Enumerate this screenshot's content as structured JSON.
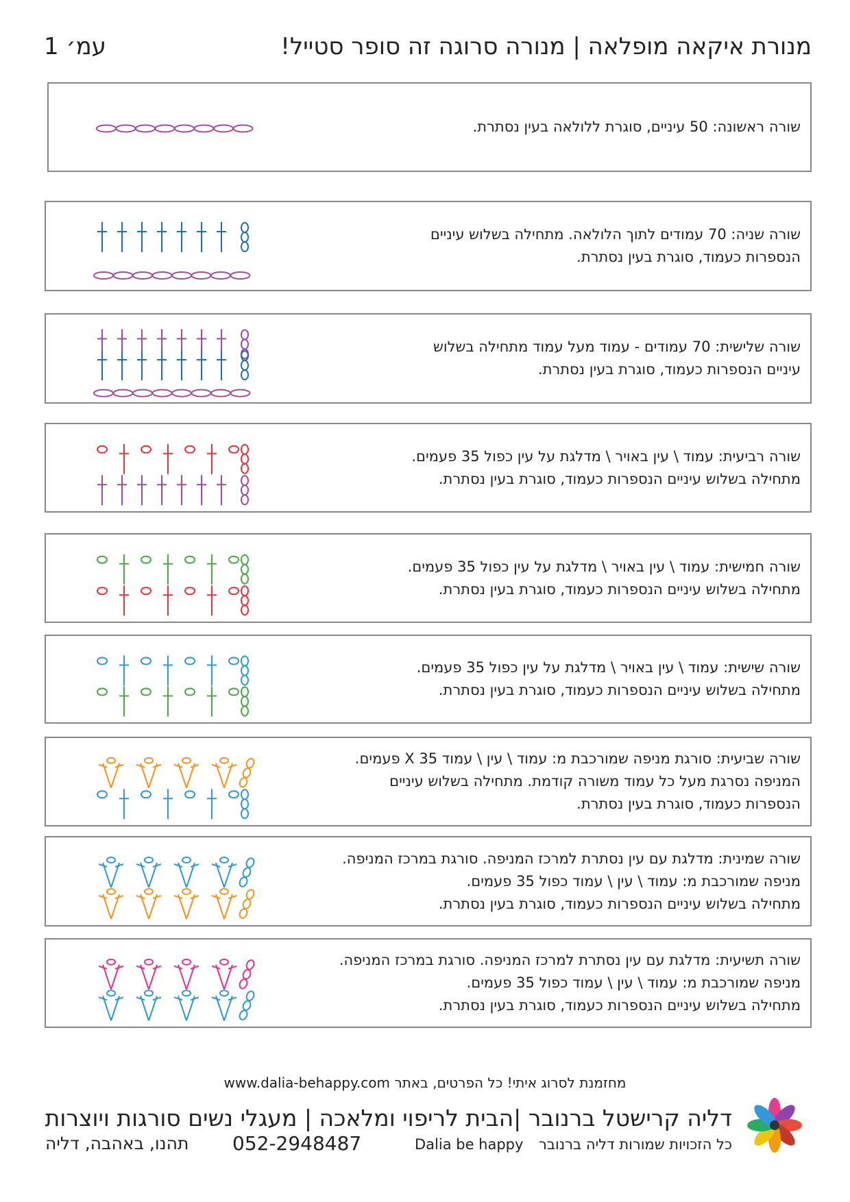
{
  "header": {
    "title": "מנורת איקאה מופלאה | מנורה סרוגה זה סופר סטייל!",
    "page": "עמ׳ 1"
  },
  "rows": [
    {
      "lines": [
        "שורה ראשונה: 50 עיניים, סוגרת ללולאה בעין נסתרת."
      ]
    },
    {
      "lines": [
        "שורה שניה: 70 עמודים לתוך הלולאה. מתחילה בשלוש עיניים",
        "הנספרות כעמוד, סוגרת בעין נסתרת."
      ]
    },
    {
      "lines": [
        "שורה שלישית: 70 עמודים - עמוד מעל עמוד מתחילה בשלוש",
        "עיניים הנספרות כעמוד, סוגרת בעין נסתרת."
      ]
    },
    {
      "lines": [
        "שורה רביעית: עמוד \\ עין באויר \\ מדלגת על עין כפול 35 פעמים.",
        "מתחילה בשלוש עיניים הנספרות כעמוד, סוגרת בעין נסתרת."
      ]
    },
    {
      "lines": [
        "שורה חמישית: עמוד \\ עין באויר \\ מדלגת על עין כפול 35 פעמים.",
        "מתחילה בשלוש עיניים הנספרות כעמוד, סוגרת בעין נסתרת."
      ]
    },
    {
      "lines": [
        "שורה שישית: עמוד \\ עין באויר \\ מדלגת על עין כפול 35 פעמים.",
        "מתחילה בשלוש עיניים הנספרות כעמוד, סוגרת בעין נסתרת."
      ]
    },
    {
      "lines": [
        "שורה שביעית: סורגת מניפה שמורכבת מ: עמוד \\ עין \\ עמוד X 35 פעמים.",
        "המניפה נסרגת מעל כל עמוד משורה קודמת. מתחילה בשלוש עיניים",
        "הנספרות כעמוד, סוגרת בעין נסתרת."
      ]
    },
    {
      "lines": [
        "שורה שמינית: מדלגת עם עין נסתרת למרכז המניפה. סורגת במרכז המניפה.",
        "מניפה שמורכבת מ: עמוד \\ עין \\ עמוד כפול 35 פעמים.",
        "מתחילה בשלוש עיניים הנספרות כעמוד, סוגרת בעין נסתרת."
      ]
    },
    {
      "lines": [
        "שורה תשיעית: מדלגת עם עין נסתרת למרכז המניפה. סורגת במרכז המניפה.",
        "מניפה שמורכבת מ: עמוד \\ עין \\ עמוד כפול 35 פעמים.",
        "מתחילה בשלוש עיניים הנספרות כעמוד, סוגרת בעין נסתרת."
      ]
    }
  ],
  "footer": {
    "invite": "מחזמנת לסרוג איתי! כל הפרטים, באתר www.dalia-behappy.com",
    "name": "דליה קרישטל ברנובר |הבית לריפוי ומלאכה | מעגלי נשים סורגות ויוצרות",
    "rights": "כל הזכויות שמורות דליה ברנובר",
    "brand": "Dalia be happy",
    "phone": "052-2948487",
    "greeting": "תהנו, באהבה, דליה"
  }
}
